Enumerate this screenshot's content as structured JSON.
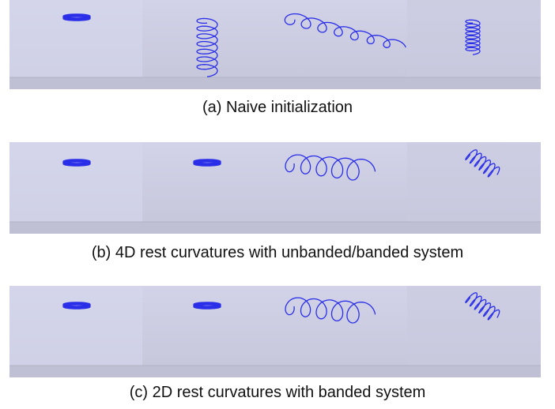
{
  "figure": {
    "panels": [
      {
        "caption": "(a) Naive initialization"
      },
      {
        "caption": "(b) 4D rest curvatures with unbanded/banded system"
      },
      {
        "caption": "(c) 2D rest curvatures with banded system"
      }
    ]
  }
}
